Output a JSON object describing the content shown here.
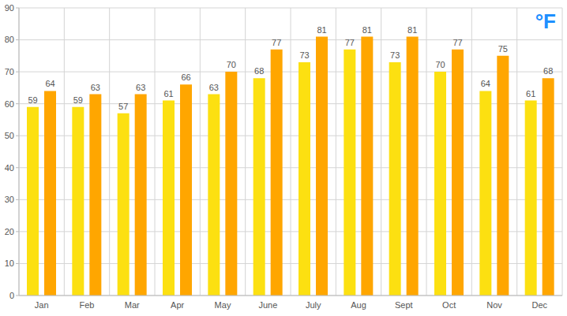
{
  "chart_data": {
    "type": "bar",
    "annotations": [
      "°F"
    ],
    "categories": [
      "Jan",
      "Feb",
      "Mar",
      "Apr",
      "May",
      "June",
      "July",
      "Aug",
      "Sept",
      "Oct",
      "Nov",
      "Dec"
    ],
    "series": [
      {
        "color": "#fce011",
        "values": [
          59,
          59,
          57,
          61,
          63,
          68,
          73,
          77,
          73,
          70,
          64,
          61
        ]
      },
      {
        "color": "#ffa600",
        "values": [
          64,
          63,
          63,
          66,
          70,
          77,
          81,
          81,
          81,
          77,
          75,
          68
        ]
      }
    ],
    "ylim": [
      0,
      90
    ],
    "yticks": [
      0,
      10,
      20,
      30,
      40,
      50,
      60,
      70,
      80,
      90
    ],
    "grid": true,
    "data_labels": true
  }
}
